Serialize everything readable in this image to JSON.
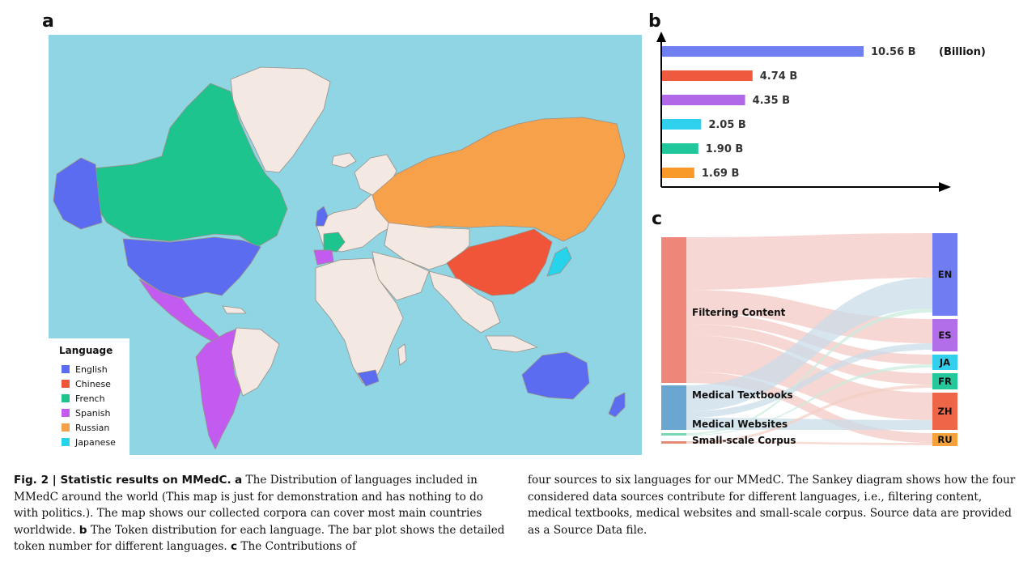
{
  "panels": {
    "a": "a",
    "b": "b",
    "c": "c"
  },
  "map": {
    "background": "#8fd5e3",
    "land_color": "#f4e9e2",
    "legend_title": "Language",
    "legend": [
      {
        "label": "English",
        "color": "#5b6cf0"
      },
      {
        "label": "Chinese",
        "color": "#f0553a"
      },
      {
        "label": "French",
        "color": "#1ec48e"
      },
      {
        "label": "Spanish",
        "color": "#c45bf0"
      },
      {
        "label": "Russian",
        "color": "#f7a14a"
      },
      {
        "label": "Japanese",
        "color": "#27d3ea"
      }
    ]
  },
  "chart_data": {
    "type": "bar",
    "orientation": "horizontal",
    "values": [
      10.56,
      4.74,
      4.35,
      2.05,
      1.9,
      1.69
    ],
    "labels": [
      "10.56 B",
      "4.74 B",
      "4.35 B",
      "2.05 B",
      "1.90 B",
      "1.69 B"
    ],
    "unit_note": "(Billion)",
    "colors": [
      "#6f7ff2",
      "#ee5a3e",
      "#b067e8",
      "#2fd1ee",
      "#20c79a",
      "#f79a2a"
    ],
    "series_languages": [
      "English",
      "Chinese",
      "Spanish",
      "Japanese",
      "French",
      "Russian"
    ]
  },
  "sankey": {
    "sources": [
      {
        "label": "Filtering Content",
        "color": "#ef867a"
      },
      {
        "label": "Medical Textbooks",
        "color": "#6aa6cf"
      },
      {
        "label": "Medical Websites",
        "color": "#79d6b6"
      },
      {
        "label": "Small-scale Corpus",
        "color": "#e28a74"
      }
    ],
    "targets": [
      {
        "label": "EN",
        "color": "#707cf2"
      },
      {
        "label": "ES",
        "color": "#b26ee8"
      },
      {
        "label": "JA",
        "color": "#33d0ee"
      },
      {
        "label": "FR",
        "color": "#25c89b"
      },
      {
        "label": "ZH",
        "color": "#ee6647"
      },
      {
        "label": "RU",
        "color": "#f5a23d"
      }
    ]
  },
  "caption": {
    "left": {
      "fig": "Fig. 2 | Statistic results on MMedC.",
      "a_label": "a",
      "a_text": "The Distribution of languages included in MMedC around the world (This map is just for demonstration and has nothing to do with politics.). The map shows our collected corpora can cover most main countries worldwide.",
      "b_label": "b",
      "b_text": "The Token distribution for each language. The bar plot shows the detailed token number for different languages.",
      "c_label": "c",
      "c_text": "The Contributions of"
    },
    "right": "four sources to six languages for our MMedC. The Sankey diagram shows how the four considered data sources contribute for different languages, i.e., filtering content, medical textbooks, medical websites and small-scale corpus. Source data are provided as a Source Data file."
  }
}
